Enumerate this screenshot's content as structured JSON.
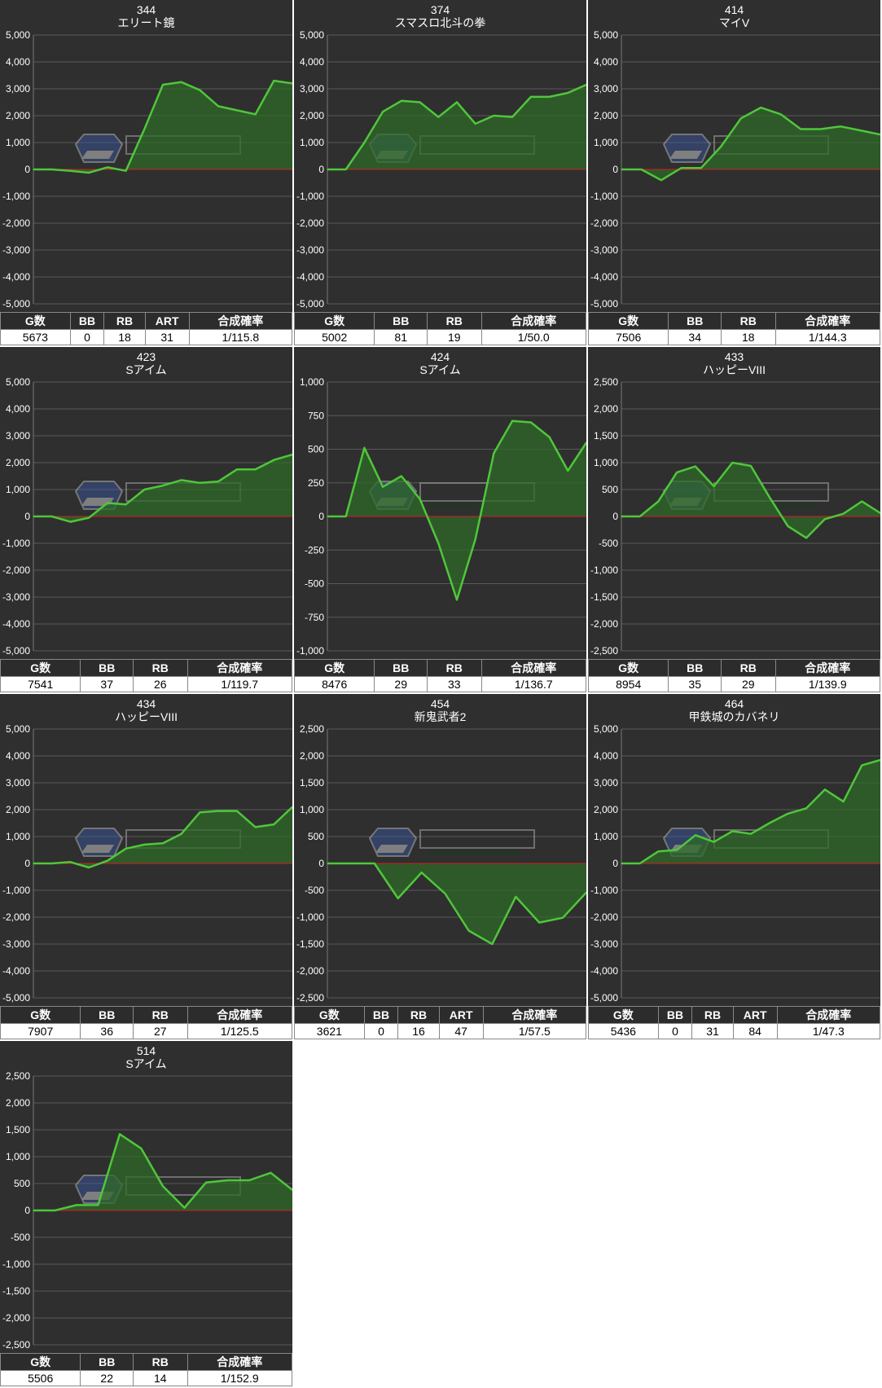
{
  "colors": {
    "background": "#2f2f2f",
    "grid": "#5a5a5a",
    "zero_line": "#cc2222",
    "series_line": "#4fc73a",
    "series_fill": "#2f6a28",
    "table_header": "#2c2c2c"
  },
  "chart_data": [
    {
      "type": "area",
      "machine_no": "344",
      "machine_name": "エリート鏡",
      "y_ticks": [
        "5,000",
        "4,000",
        "3,000",
        "2,000",
        "1,000",
        "0",
        "-1,000",
        "-2,000",
        "-3,000",
        "-4,000",
        "-5,000"
      ],
      "ylim": [
        -5000,
        5000
      ],
      "values": [
        0,
        0,
        -50,
        -120,
        80,
        -50,
        1500,
        3150,
        3250,
        2950,
        2350,
        2200,
        2050,
        3300,
        3200
      ],
      "stats": {
        "headers": [
          "G数",
          "BB",
          "RB",
          "ART",
          "合成確率"
        ],
        "values": [
          "5673",
          "0",
          "18",
          "31",
          "1/115.8"
        ]
      }
    },
    {
      "type": "area",
      "machine_no": "374",
      "machine_name": "スマスロ北斗の拳",
      "y_ticks": [
        "5,000",
        "4,000",
        "3,000",
        "2,000",
        "1,000",
        "0",
        "-1,000",
        "-2,000",
        "-3,000",
        "-4,000",
        "-5,000"
      ],
      "ylim": [
        -5000,
        5000
      ],
      "values": [
        0,
        0,
        1000,
        2150,
        2550,
        2500,
        1950,
        2500,
        1700,
        2000,
        1950,
        2700,
        2700,
        2850,
        3150
      ],
      "stats": {
        "headers": [
          "G数",
          "BB",
          "RB",
          "合成確率"
        ],
        "values": [
          "5002",
          "81",
          "19",
          "1/50.0"
        ]
      }
    },
    {
      "type": "area",
      "machine_no": "414",
      "machine_name": "マイV",
      "y_ticks": [
        "5,000",
        "4,000",
        "3,000",
        "2,000",
        "1,000",
        "0",
        "-1,000",
        "-2,000",
        "-3,000",
        "-4,000",
        "-5,000"
      ],
      "ylim": [
        -5000,
        5000
      ],
      "values": [
        0,
        0,
        -400,
        50,
        50,
        850,
        1900,
        2300,
        2050,
        1500,
        1500,
        1600,
        1450,
        1300
      ],
      "stats": {
        "headers": [
          "G数",
          "BB",
          "RB",
          "合成確率"
        ],
        "values": [
          "7506",
          "34",
          "18",
          "1/144.3"
        ]
      }
    },
    {
      "type": "area",
      "machine_no": "423",
      "machine_name": "Sアイム",
      "y_ticks": [
        "5,000",
        "4,000",
        "3,000",
        "2,000",
        "1,000",
        "0",
        "-1,000",
        "-2,000",
        "-3,000",
        "-4,000",
        "-5,000"
      ],
      "ylim": [
        -5000,
        5000
      ],
      "values": [
        0,
        0,
        -200,
        -50,
        500,
        450,
        1000,
        1150,
        1350,
        1250,
        1300,
        1750,
        1750,
        2100,
        2300
      ],
      "stats": {
        "headers": [
          "G数",
          "BB",
          "RB",
          "合成確率"
        ],
        "values": [
          "7541",
          "37",
          "26",
          "1/119.7"
        ]
      }
    },
    {
      "type": "area",
      "machine_no": "424",
      "machine_name": "Sアイム",
      "y_ticks": [
        "1,000",
        "750",
        "500",
        "250",
        "0",
        "-250",
        "-500",
        "-750",
        "-1,000"
      ],
      "ylim": [
        -1000,
        1000
      ],
      "values": [
        0,
        0,
        510,
        220,
        300,
        130,
        -200,
        -620,
        -170,
        470,
        710,
        700,
        590,
        340,
        550
      ],
      "stats": {
        "headers": [
          "G数",
          "BB",
          "RB",
          "合成確率"
        ],
        "values": [
          "8476",
          "29",
          "33",
          "1/136.7"
        ]
      }
    },
    {
      "type": "area",
      "machine_no": "433",
      "machine_name": "ハッピーVIII",
      "y_ticks": [
        "2,500",
        "2,000",
        "1,500",
        "1,000",
        "500",
        "0",
        "-500",
        "-1,000",
        "-1,500",
        "-2,000",
        "-2,500"
      ],
      "ylim": [
        -2500,
        2500
      ],
      "values": [
        0,
        0,
        280,
        820,
        930,
        560,
        1000,
        940,
        360,
        -180,
        -400,
        -50,
        50,
        280,
        60
      ],
      "stats": {
        "headers": [
          "G数",
          "BB",
          "RB",
          "合成確率"
        ],
        "values": [
          "8954",
          "35",
          "29",
          "1/139.9"
        ]
      }
    },
    {
      "type": "area",
      "machine_no": "434",
      "machine_name": "ハッピーVIII",
      "y_ticks": [
        "5,000",
        "4,000",
        "3,000",
        "2,000",
        "1,000",
        "0",
        "-1,000",
        "-2,000",
        "-3,000",
        "-4,000",
        "-5,000"
      ],
      "ylim": [
        -5000,
        5000
      ],
      "values": [
        0,
        0,
        50,
        -150,
        100,
        550,
        700,
        750,
        1100,
        1900,
        1950,
        1950,
        1350,
        1450,
        2100
      ],
      "stats": {
        "headers": [
          "G数",
          "BB",
          "RB",
          "合成確率"
        ],
        "values": [
          "7907",
          "36",
          "27",
          "1/125.5"
        ]
      }
    },
    {
      "type": "area",
      "machine_no": "454",
      "machine_name": "新鬼武者2",
      "y_ticks": [
        "2,500",
        "2,000",
        "1,500",
        "1,000",
        "500",
        "0",
        "-500",
        "-1,000",
        "-1,500",
        "-2,000",
        "-2,500"
      ],
      "ylim": [
        -2500,
        2500
      ],
      "values": [
        0,
        0,
        0,
        -650,
        -170,
        -560,
        -1250,
        -1500,
        -620,
        -1100,
        -1010,
        -540
      ],
      "stats": {
        "headers": [
          "G数",
          "BB",
          "RB",
          "ART",
          "合成確率"
        ],
        "values": [
          "3621",
          "0",
          "16",
          "47",
          "1/57.5"
        ]
      }
    },
    {
      "type": "area",
      "machine_no": "464",
      "machine_name": "甲鉄城のカバネリ",
      "y_ticks": [
        "5,000",
        "4,000",
        "3,000",
        "2,000",
        "1,000",
        "0",
        "-1,000",
        "-2,000",
        "-3,000",
        "-4,000",
        "-5,000"
      ],
      "ylim": [
        -5000,
        5000
      ],
      "values": [
        0,
        0,
        450,
        500,
        1050,
        800,
        1200,
        1100,
        1500,
        1850,
        2050,
        2750,
        2300,
        3650,
        3850
      ],
      "stats": {
        "headers": [
          "G数",
          "BB",
          "RB",
          "ART",
          "合成確率"
        ],
        "values": [
          "5436",
          "0",
          "31",
          "84",
          "1/47.3"
        ]
      }
    },
    {
      "type": "area",
      "machine_no": "514",
      "machine_name": "Sアイム",
      "y_ticks": [
        "2,500",
        "2,000",
        "1,500",
        "1,000",
        "500",
        "0",
        "-500",
        "-1,000",
        "-1,500",
        "-2,000",
        "-2,500"
      ],
      "ylim": [
        -2500,
        2500
      ],
      "values": [
        0,
        0,
        100,
        100,
        1420,
        1150,
        450,
        50,
        520,
        560,
        560,
        700,
        380
      ],
      "stats": {
        "headers": [
          "G数",
          "BB",
          "RB",
          "合成確率"
        ],
        "values": [
          "5506",
          "22",
          "14",
          "1/152.9"
        ]
      }
    }
  ]
}
